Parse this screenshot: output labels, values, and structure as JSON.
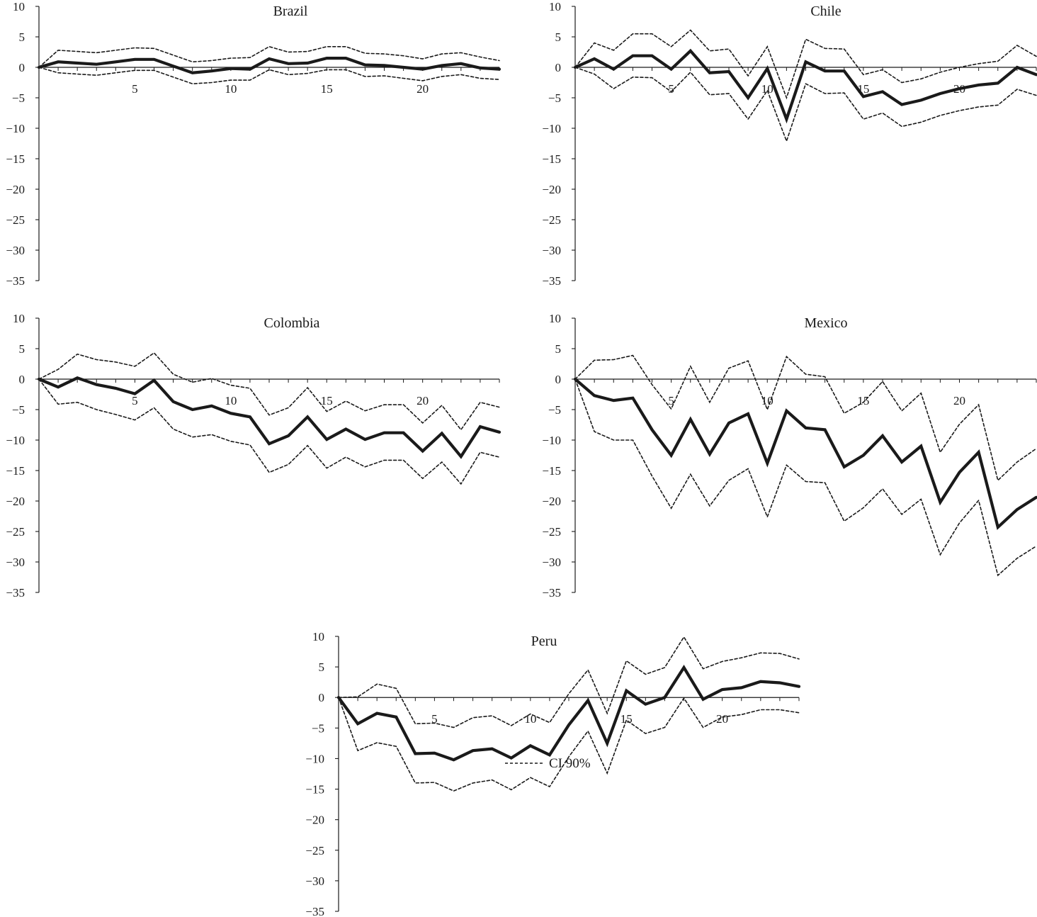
{
  "legend": {
    "ci_label": "CI 90%"
  },
  "chart_data": [
    {
      "type": "line",
      "title": "Brazil",
      "ylim": [
        -35,
        10
      ],
      "yticks": [
        10,
        5,
        0,
        -5,
        -10,
        -15,
        -20,
        -25,
        -30,
        -35
      ],
      "xticks": [
        5,
        10,
        15,
        20
      ],
      "xlim": [
        0,
        24
      ],
      "x": [
        0,
        1,
        2,
        3,
        4,
        5,
        6,
        7,
        8,
        9,
        10,
        11,
        12,
        13,
        14,
        15,
        16,
        17,
        18,
        19,
        20,
        21,
        22,
        23,
        24
      ],
      "series": [
        {
          "role": "estimate",
          "values": [
            0,
            0.9,
            0.7,
            0.5,
            0.9,
            1.3,
            1.3,
            0.2,
            -0.9,
            -0.6,
            -0.2,
            -0.3,
            1.4,
            0.6,
            0.7,
            1.5,
            1.5,
            0.4,
            0.3,
            0.0,
            -0.3,
            0.3,
            0.6,
            -0.1,
            -0.3
          ]
        },
        {
          "role": "ci_upper",
          "values": [
            0,
            2.8,
            2.6,
            2.4,
            2.8,
            3.2,
            3.1,
            2.0,
            0.9,
            1.1,
            1.5,
            1.6,
            3.4,
            2.5,
            2.6,
            3.4,
            3.4,
            2.3,
            2.2,
            1.9,
            1.4,
            2.2,
            2.4,
            1.7,
            1.1
          ]
        },
        {
          "role": "ci_lower",
          "values": [
            0,
            -0.9,
            -1.1,
            -1.3,
            -0.9,
            -0.5,
            -0.5,
            -1.6,
            -2.7,
            -2.5,
            -2.1,
            -2.1,
            -0.4,
            -1.2,
            -1.0,
            -0.4,
            -0.4,
            -1.5,
            -1.4,
            -1.8,
            -2.2,
            -1.5,
            -1.2,
            -1.8,
            -2.0
          ]
        }
      ]
    },
    {
      "type": "line",
      "title": "Chile",
      "ylim": [
        -35,
        10
      ],
      "yticks": [
        10,
        5,
        0,
        -5,
        -10,
        -15,
        -20,
        -25,
        -30,
        -35
      ],
      "xticks": [
        5,
        10,
        15,
        20
      ],
      "xlim": [
        0,
        24
      ],
      "x": [
        0,
        1,
        2,
        3,
        4,
        5,
        6,
        7,
        8,
        9,
        10,
        11,
        12,
        13,
        14,
        15,
        16,
        17,
        18,
        19,
        20,
        21,
        22,
        23,
        24
      ],
      "series": [
        {
          "role": "estimate",
          "values": [
            0,
            1.4,
            -0.3,
            1.9,
            1.9,
            -0.3,
            2.7,
            -0.9,
            -0.7,
            -5.0,
            -0.2,
            -8.5,
            0.9,
            -0.6,
            -0.6,
            -4.8,
            -4.0,
            -6.1,
            -5.4,
            -4.3,
            -3.5,
            -2.9,
            -2.6,
            0.0,
            -1.2
          ]
        },
        {
          "role": "ci_upper",
          "values": [
            0,
            4.0,
            2.8,
            5.5,
            5.5,
            3.4,
            6.1,
            2.7,
            3.0,
            -1.4,
            3.4,
            -5.0,
            4.6,
            3.1,
            3.0,
            -1.2,
            -0.4,
            -2.5,
            -1.9,
            -0.8,
            0.0,
            0.6,
            1.0,
            3.6,
            1.8
          ]
        },
        {
          "role": "ci_lower",
          "values": [
            0,
            -1.1,
            -3.5,
            -1.6,
            -1.7,
            -4.0,
            -0.8,
            -4.5,
            -4.3,
            -8.5,
            -3.8,
            -12.1,
            -2.7,
            -4.3,
            -4.2,
            -8.5,
            -7.5,
            -9.7,
            -9.0,
            -7.9,
            -7.1,
            -6.5,
            -6.2,
            -3.6,
            -4.6
          ]
        }
      ]
    },
    {
      "type": "line",
      "title": "Colombia",
      "ylim": [
        -35,
        10
      ],
      "yticks": [
        10,
        5,
        0,
        -5,
        -10,
        -15,
        -20,
        -25,
        -30,
        -35
      ],
      "xticks": [
        5,
        10,
        15,
        20
      ],
      "xlim": [
        0,
        24
      ],
      "x": [
        0,
        1,
        2,
        3,
        4,
        5,
        6,
        7,
        8,
        9,
        10,
        11,
        12,
        13,
        14,
        15,
        16,
        17,
        18,
        19,
        20,
        21,
        22,
        23,
        24
      ],
      "series": [
        {
          "role": "estimate",
          "values": [
            0,
            -1.3,
            0.2,
            -0.9,
            -1.5,
            -2.4,
            -0.2,
            -3.7,
            -5.0,
            -4.4,
            -5.6,
            -6.2,
            -10.6,
            -9.3,
            -6.2,
            -9.9,
            -8.2,
            -9.9,
            -8.8,
            -8.8,
            -11.8,
            -8.9,
            -12.7,
            -7.8,
            -8.7
          ]
        },
        {
          "role": "ci_upper",
          "values": [
            0,
            1.6,
            4.1,
            3.2,
            2.8,
            2.1,
            4.3,
            0.8,
            -0.5,
            0.1,
            -1.0,
            -1.5,
            -5.9,
            -4.7,
            -1.4,
            -5.3,
            -3.6,
            -5.2,
            -4.2,
            -4.2,
            -7.2,
            -4.3,
            -8.3,
            -3.8,
            -4.6
          ]
        },
        {
          "role": "ci_lower",
          "values": [
            0,
            -4.1,
            -3.8,
            -5.0,
            -5.8,
            -6.7,
            -4.7,
            -8.2,
            -9.5,
            -9.1,
            -10.2,
            -10.8,
            -15.3,
            -14.0,
            -10.9,
            -14.6,
            -12.8,
            -14.4,
            -13.3,
            -13.3,
            -16.3,
            -13.6,
            -17.2,
            -12.0,
            -12.8
          ]
        }
      ]
    },
    {
      "type": "line",
      "title": "Mexico",
      "ylim": [
        -35,
        10
      ],
      "yticks": [
        10,
        5,
        0,
        -5,
        -10,
        -15,
        -20,
        -25,
        -30,
        -35
      ],
      "xticks": [
        5,
        10,
        15,
        20
      ],
      "xlim": [
        0,
        24
      ],
      "x": [
        0,
        1,
        2,
        3,
        4,
        5,
        6,
        7,
        8,
        9,
        10,
        11,
        12,
        13,
        14,
        15,
        16,
        17,
        18,
        19,
        20,
        21,
        22,
        23,
        24
      ],
      "series": [
        {
          "role": "estimate",
          "values": [
            0,
            -2.7,
            -3.5,
            -3.1,
            -8.3,
            -12.5,
            -6.6,
            -12.3,
            -7.2,
            -5.7,
            -13.8,
            -5.2,
            -8.0,
            -8.3,
            -14.4,
            -12.5,
            -9.3,
            -13.6,
            -11.0,
            -20.2,
            -15.3,
            -12.0,
            -24.3,
            -21.4,
            -19.4
          ]
        },
        {
          "role": "ci_upper",
          "values": [
            0,
            3.1,
            3.2,
            3.9,
            -0.9,
            -4.9,
            2.1,
            -3.8,
            1.8,
            3.0,
            -5.0,
            3.7,
            0.8,
            0.4,
            -5.6,
            -3.8,
            -0.4,
            -5.2,
            -2.3,
            -12.0,
            -7.4,
            -4.2,
            -16.6,
            -13.6,
            -11.4
          ]
        },
        {
          "role": "ci_lower",
          "values": [
            0,
            -8.6,
            -10.0,
            -10.0,
            -15.9,
            -21.2,
            -15.6,
            -20.8,
            -16.6,
            -14.7,
            -22.6,
            -14.1,
            -16.8,
            -17.0,
            -23.3,
            -21.1,
            -18.0,
            -22.2,
            -19.7,
            -28.8,
            -23.6,
            -19.9,
            -32.2,
            -29.4,
            -27.4
          ]
        }
      ]
    },
    {
      "type": "line",
      "title": "Peru",
      "ylim": [
        -35,
        10
      ],
      "yticks": [
        10,
        5,
        0,
        -5,
        -10,
        -15,
        -20,
        -25,
        -30,
        -35
      ],
      "xticks": [
        5,
        10,
        15,
        20
      ],
      "xlim": [
        0,
        24
      ],
      "x": [
        0,
        1,
        2,
        3,
        4,
        5,
        6,
        7,
        8,
        9,
        10,
        11,
        12,
        13,
        14,
        15,
        16,
        17,
        18,
        19,
        20,
        21,
        22,
        23,
        24
      ],
      "series": [
        {
          "role": "estimate",
          "values": [
            0,
            -4.3,
            -2.6,
            -3.2,
            -9.2,
            -9.1,
            -10.2,
            -8.7,
            -8.4,
            -9.9,
            -7.9,
            -9.4,
            -4.5,
            -0.5,
            -7.5,
            1.1,
            -1.1,
            0.0,
            4.9,
            -0.3,
            1.3,
            1.6,
            2.6,
            2.4,
            1.8
          ]
        },
        {
          "role": "ci_upper",
          "values": [
            0,
            0.1,
            2.2,
            1.5,
            -4.3,
            -4.2,
            -4.9,
            -3.3,
            -3.0,
            -4.6,
            -2.7,
            -4.1,
            0.6,
            4.5,
            -2.6,
            6.0,
            3.8,
            4.9,
            9.9,
            4.7,
            5.9,
            6.5,
            7.3,
            7.2,
            6.3
          ]
        },
        {
          "role": "ci_lower",
          "values": [
            0,
            -8.7,
            -7.4,
            -8.0,
            -14.0,
            -13.9,
            -15.3,
            -14.0,
            -13.5,
            -15.1,
            -13.1,
            -14.6,
            -9.7,
            -5.5,
            -12.4,
            -3.7,
            -5.9,
            -4.9,
            -0.1,
            -4.9,
            -3.2,
            -2.8,
            -2.0,
            -2.0,
            -2.5
          ]
        }
      ]
    }
  ]
}
